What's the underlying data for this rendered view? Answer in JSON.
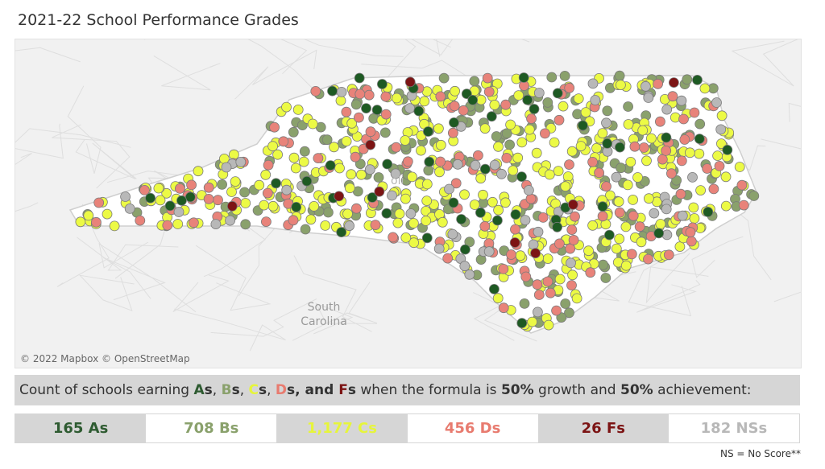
{
  "title": "2021-22 School Performance Grades",
  "map": {
    "attribution": "© 2022 Mapbox © OpenStreetMap",
    "neighbor_labels": {
      "south_carolina_1": "South",
      "south_carolina_2": "Carolina",
      "nc_fragment": "oli"
    },
    "point_counts": {
      "A": 165,
      "B": 708,
      "C": 1177,
      "D": 456,
      "F": 26,
      "NS": 182
    }
  },
  "banner": {
    "prefix": "Count of schools earning ",
    "grade_a": "A",
    "grade_b": "B",
    "grade_c": "C",
    "grade_d": "D",
    "grade_f": "F",
    "s": "s",
    "sep1": ", ",
    "and": ", and ",
    "middle": " when the formula is ",
    "growth_pct": "50%",
    "growth_word": " growth and ",
    "ach_pct": "50%",
    "ach_word": " achievement:"
  },
  "counts": [
    {
      "label": "165 As",
      "color": "#2e5b31",
      "bg": "#d6d6d6"
    },
    {
      "label": "708 Bs",
      "color": "#8aa16c",
      "bg": "#ffffff"
    },
    {
      "label": "1,177 Cs",
      "color": "#e6f53b",
      "bg": "#d6d6d6"
    },
    {
      "label": "456 Ds",
      "color": "#e87b6f",
      "bg": "#ffffff"
    },
    {
      "label": "26 Fs",
      "color": "#7c1414",
      "bg": "#d6d6d6"
    },
    {
      "label": "182 NSs",
      "color": "#b8b8b8",
      "bg": "#ffffff"
    }
  ],
  "footnote": "NS = No Score**",
  "colors": {
    "A": "#1e5a23",
    "B": "#8aa16c",
    "C": "#ecfa45",
    "D": "#e8837a",
    "F": "#7c1414",
    "NS": "#b8b8b8"
  }
}
